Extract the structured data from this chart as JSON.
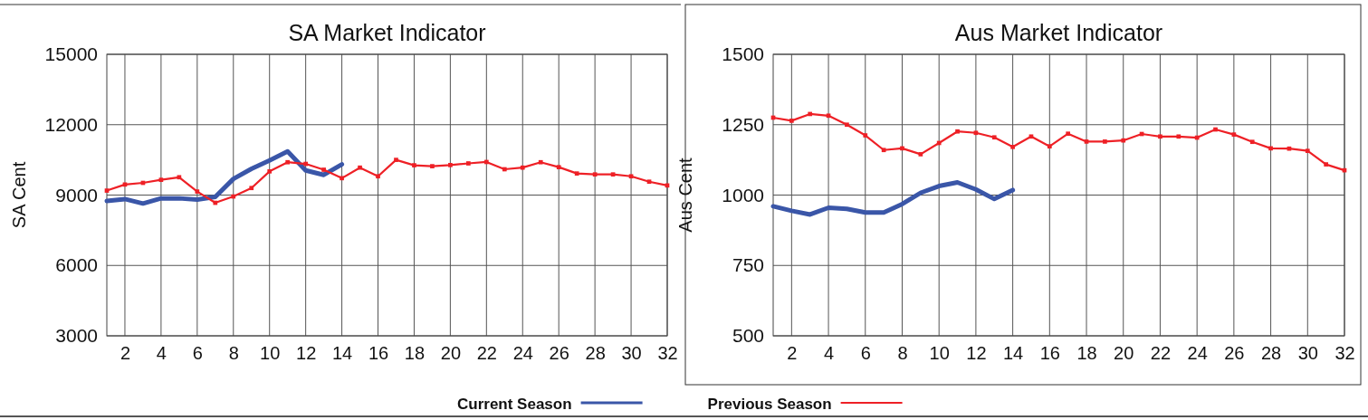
{
  "chart_data": [
    {
      "type": "line",
      "title": "SA Market Indicator",
      "ylabel": "SA Cent",
      "xlim": [
        1,
        32
      ],
      "xticks": [
        2,
        4,
        6,
        8,
        10,
        12,
        14,
        16,
        18,
        20,
        22,
        24,
        26,
        28,
        30,
        32
      ],
      "ylim": [
        3000,
        15000
      ],
      "yticks": [
        3000,
        6000,
        9000,
        12000,
        15000
      ],
      "grid": true,
      "legend": "bottom",
      "series": [
        {
          "name": "Current Season",
          "color": "#3a56a8",
          "marker": "none",
          "x": [
            1,
            2,
            3,
            4,
            5,
            6,
            7,
            8,
            9,
            10,
            11,
            12,
            13,
            14
          ],
          "values": [
            8750,
            8830,
            8640,
            8860,
            8860,
            8810,
            8920,
            9690,
            10120,
            10480,
            10860,
            10050,
            9860,
            10310
          ]
        },
        {
          "name": "Previous Season",
          "color": "#ee2026",
          "marker": "square",
          "x": [
            1,
            2,
            3,
            4,
            5,
            6,
            7,
            8,
            9,
            10,
            11,
            12,
            13,
            14,
            15,
            16,
            17,
            18,
            19,
            20,
            21,
            22,
            23,
            24,
            25,
            26,
            27,
            28,
            29,
            30,
            31,
            32
          ],
          "values": [
            9190,
            9450,
            9520,
            9650,
            9760,
            9150,
            8670,
            8940,
            9300,
            10010,
            10400,
            10330,
            10080,
            9720,
            10170,
            9800,
            10500,
            10270,
            10230,
            10280,
            10350,
            10410,
            10100,
            10170,
            10400,
            10190,
            9920,
            9880,
            9880,
            9800,
            9570,
            9410
          ]
        }
      ]
    },
    {
      "type": "line",
      "title": "Aus Market Indicator",
      "ylabel": "Aus Cent",
      "xlim": [
        1,
        32
      ],
      "xticks": [
        2,
        4,
        6,
        8,
        10,
        12,
        14,
        16,
        18,
        20,
        22,
        24,
        26,
        28,
        30,
        32
      ],
      "ylim": [
        500,
        1500
      ],
      "yticks": [
        500,
        750,
        1000,
        1250,
        1500
      ],
      "grid": true,
      "legend": "bottom",
      "series": [
        {
          "name": "Current Season",
          "color": "#3a56a8",
          "marker": "none",
          "x": [
            1,
            2,
            3,
            4,
            5,
            6,
            7,
            8,
            9,
            10,
            11,
            12,
            13,
            14
          ],
          "values": [
            960,
            944,
            931,
            955,
            951,
            938,
            938,
            968,
            1008,
            1032,
            1045,
            1020,
            986,
            1018
          ]
        },
        {
          "name": "Previous Season",
          "color": "#ee2026",
          "marker": "square",
          "x": [
            1,
            2,
            3,
            4,
            5,
            6,
            7,
            8,
            9,
            10,
            11,
            12,
            13,
            14,
            15,
            16,
            17,
            18,
            19,
            20,
            21,
            22,
            23,
            24,
            25,
            26,
            27,
            28,
            29,
            30,
            31,
            32
          ],
          "values": [
            1275,
            1264,
            1288,
            1282,
            1250,
            1212,
            1160,
            1166,
            1145,
            1185,
            1226,
            1221,
            1205,
            1171,
            1208,
            1173,
            1218,
            1190,
            1190,
            1194,
            1217,
            1208,
            1208,
            1204,
            1233,
            1215,
            1189,
            1166,
            1165,
            1157,
            1109,
            1088
          ]
        }
      ]
    }
  ]
}
